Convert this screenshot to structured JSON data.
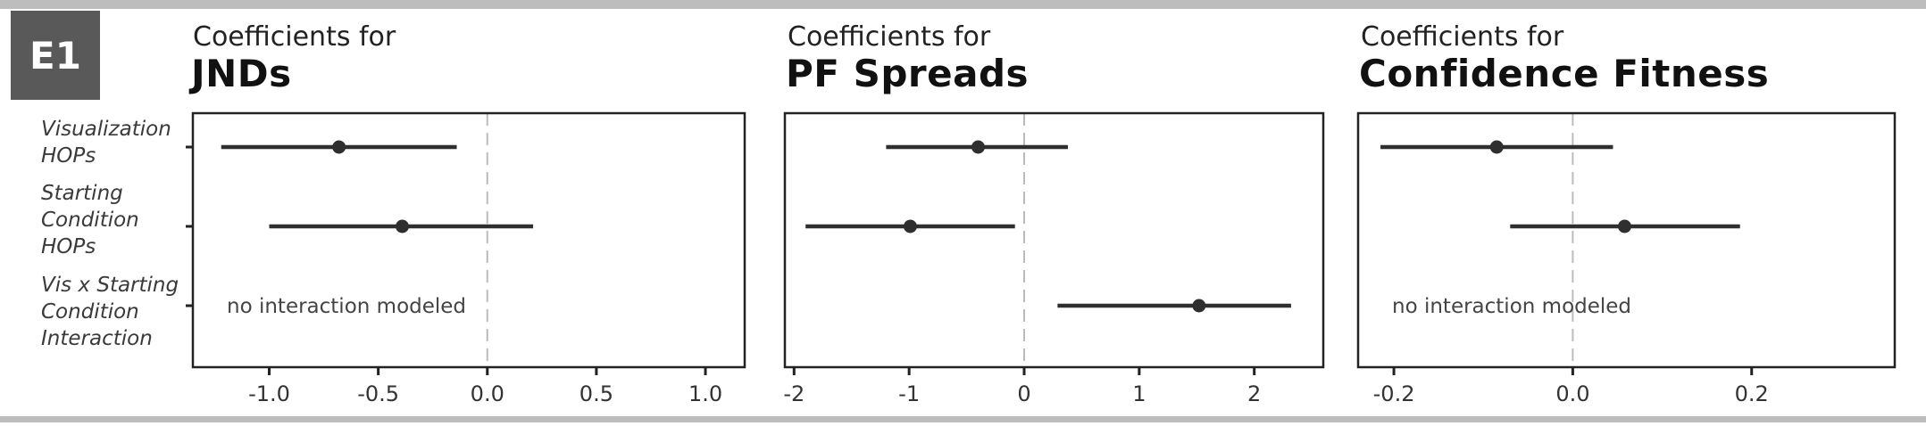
{
  "figure_label": "E1",
  "row_labels": [
    [
      "Visualization",
      "HOPs"
    ],
    [
      "Starting",
      "Condition",
      "HOPs"
    ],
    [
      "Vis x Starting",
      "Condition",
      "Interaction"
    ]
  ],
  "colors": {
    "mark": "#2f2f2f",
    "zero_line": "#bbbbbb",
    "frame": "#222222",
    "badge": "#595959"
  },
  "chart_data": [
    {
      "type": "scatter",
      "subtitle": "Coefficients for",
      "title": "JNDs",
      "xlim": [
        -1.35,
        1.18
      ],
      "xticks": [
        -1.0,
        -0.5,
        0.0,
        0.5,
        1.0
      ],
      "xtick_labels": [
        "-1.0",
        "-0.5",
        "0.0",
        "0.5",
        "1.0"
      ],
      "reference_line": 0,
      "estimates": [
        {
          "row": 0,
          "estimate": -0.68,
          "lower": -1.22,
          "upper": -0.14
        },
        {
          "row": 1,
          "estimate": -0.39,
          "lower": -1.0,
          "upper": 0.21
        }
      ],
      "note": {
        "row": 2,
        "text": "no interaction modeled"
      }
    },
    {
      "type": "scatter",
      "subtitle": "Coefficients for",
      "title": "PF Spreads",
      "xlim": [
        -2.08,
        2.6
      ],
      "xticks": [
        -2,
        -1,
        0,
        1,
        2
      ],
      "xtick_labels": [
        "-2",
        "-1",
        "0",
        "1",
        "2"
      ],
      "reference_line": 0,
      "estimates": [
        {
          "row": 0,
          "estimate": -0.4,
          "lower": -1.2,
          "upper": 0.38
        },
        {
          "row": 1,
          "estimate": -0.99,
          "lower": -1.9,
          "upper": -0.08
        },
        {
          "row": 2,
          "estimate": 1.52,
          "lower": 0.29,
          "upper": 2.32
        }
      ],
      "note": null
    },
    {
      "type": "scatter",
      "subtitle": "Coefficients for",
      "title": "Confidence Fitness",
      "xlim": [
        -0.24,
        0.36
      ],
      "xticks": [
        -0.2,
        0.0,
        0.2
      ],
      "xtick_labels": [
        "-0.2",
        "0.0",
        "0.2"
      ],
      "reference_line": 0,
      "estimates": [
        {
          "row": 0,
          "estimate": -0.085,
          "lower": -0.215,
          "upper": 0.045
        },
        {
          "row": 1,
          "estimate": 0.058,
          "lower": -0.07,
          "upper": 0.187
        }
      ],
      "note": {
        "row": 2,
        "text": "no interaction modeled"
      }
    }
  ]
}
